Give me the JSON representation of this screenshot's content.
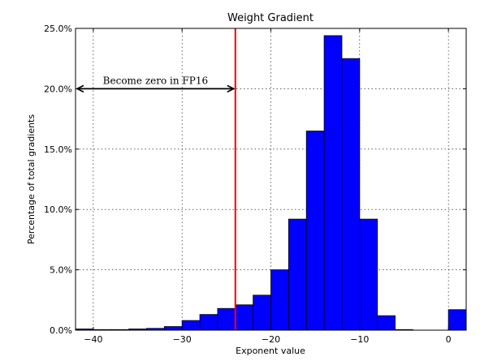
{
  "chart_data": {
    "type": "bar",
    "title": "Weight Gradient",
    "xlabel": "Exponent value",
    "ylabel": "Percentage of total gradients",
    "xlim": [
      -42,
      2
    ],
    "ylim": [
      0,
      25
    ],
    "xticks": [
      -40,
      -30,
      -20,
      -10,
      0
    ],
    "xtick_labels": [
      "−40",
      "−30",
      "−20",
      "−10",
      "0"
    ],
    "yticks": [
      0,
      5,
      10,
      15,
      20,
      25
    ],
    "ytick_labels": [
      "0.0%",
      "5.0%",
      "10.0%",
      "15.0%",
      "20.0%",
      "25.0%"
    ],
    "grid": true,
    "bar_color": "#0000ff",
    "bins": [
      {
        "x0": -42,
        "x1": -40,
        "value": 0.1
      },
      {
        "x0": -40,
        "x1": -38,
        "value": 0.05
      },
      {
        "x0": -38,
        "x1": -36,
        "value": 0.05
      },
      {
        "x0": -36,
        "x1": -34,
        "value": 0.1
      },
      {
        "x0": -34,
        "x1": -32,
        "value": 0.15
      },
      {
        "x0": -32,
        "x1": -30,
        "value": 0.3
      },
      {
        "x0": -30,
        "x1": -28,
        "value": 0.8
      },
      {
        "x0": -28,
        "x1": -26,
        "value": 1.3
      },
      {
        "x0": -26,
        "x1": -24,
        "value": 1.8
      },
      {
        "x0": -24,
        "x1": -22,
        "value": 2.1
      },
      {
        "x0": -22,
        "x1": -20,
        "value": 2.9
      },
      {
        "x0": -20,
        "x1": -18,
        "value": 5.0
      },
      {
        "x0": -18,
        "x1": -16,
        "value": 9.2
      },
      {
        "x0": -16,
        "x1": -14,
        "value": 16.5
      },
      {
        "x0": -14,
        "x1": -12,
        "value": 24.4
      },
      {
        "x0": -12,
        "x1": -10,
        "value": 22.5
      },
      {
        "x0": -10,
        "x1": -8,
        "value": 9.2
      },
      {
        "x0": -8,
        "x1": -6,
        "value": 1.2
      },
      {
        "x0": -6,
        "x1": -4,
        "value": 0.05
      },
      {
        "x0": 0,
        "x1": 2,
        "value": 1.7
      }
    ],
    "threshold": {
      "x": -24,
      "color": "#ff0000"
    },
    "annotation": {
      "text": "Become zero in FP16",
      "arrow_from_x": -42,
      "arrow_to_x": -24,
      "y": 20
    }
  }
}
